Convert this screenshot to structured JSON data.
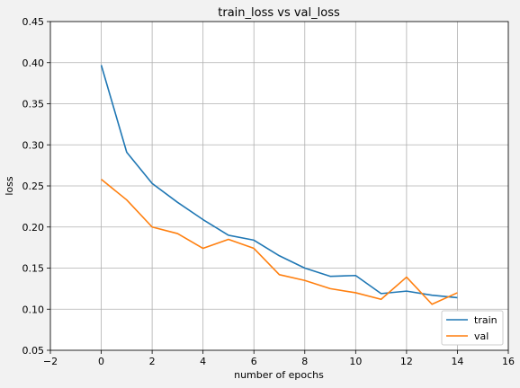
{
  "chart_data": {
    "type": "line",
    "title": "train_loss vs val_loss",
    "xlabel": "number of epochs",
    "ylabel": "loss",
    "xlim": [
      -2,
      16
    ],
    "ylim": [
      0.05,
      0.45
    ],
    "x_ticks": [
      -2,
      0,
      2,
      4,
      6,
      8,
      10,
      12,
      14,
      16
    ],
    "x_tick_labels": [
      "−2",
      "0",
      "2",
      "4",
      "6",
      "8",
      "10",
      "12",
      "14",
      "16"
    ],
    "y_ticks": [
      0.05,
      0.1,
      0.15,
      0.2,
      0.25,
      0.3,
      0.35,
      0.4,
      0.45
    ],
    "y_tick_labels": [
      "0.05",
      "0.10",
      "0.15",
      "0.20",
      "0.25",
      "0.30",
      "0.35",
      "0.40",
      "0.45"
    ],
    "grid": true,
    "legend_position": "lower-right",
    "x": [
      0,
      1,
      2,
      3,
      4,
      5,
      6,
      7,
      8,
      9,
      10,
      11,
      12,
      13,
      14
    ],
    "series": [
      {
        "name": "train",
        "color": "#1f77b4",
        "values": [
          0.397,
          0.291,
          0.253,
          0.23,
          0.209,
          0.19,
          0.184,
          0.165,
          0.15,
          0.14,
          0.141,
          0.119,
          0.122,
          0.117,
          0.114
        ]
      },
      {
        "name": "val",
        "color": "#ff7f0e",
        "values": [
          0.258,
          0.233,
          0.2,
          0.192,
          0.174,
          0.185,
          0.174,
          0.142,
          0.135,
          0.125,
          0.12,
          0.112,
          0.139,
          0.106,
          0.12
        ]
      }
    ]
  }
}
